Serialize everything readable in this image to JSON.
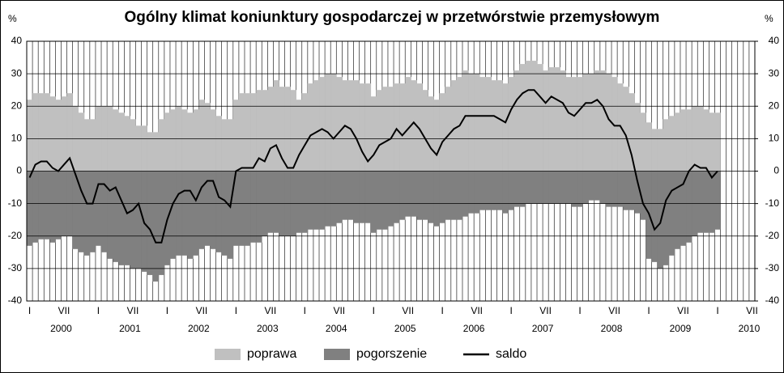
{
  "chart_data": {
    "type": "bar-line",
    "title": "Ogólny klimat koniunktury gospodarczej w przetwórstwie przemysłowym",
    "y_label": "%",
    "y2_label": "%",
    "categories": [
      "I",
      null,
      null,
      null,
      null,
      null,
      "VII",
      null,
      null,
      null,
      null,
      null,
      "I",
      null,
      null,
      null,
      null,
      null,
      "VII",
      null,
      null,
      null,
      null,
      null,
      "I",
      null,
      null,
      null,
      null,
      null,
      "VII",
      null,
      null,
      null,
      null,
      null,
      "I",
      null,
      null,
      null,
      null,
      null,
      "VII",
      null,
      null,
      null,
      null,
      null,
      "I",
      null,
      null,
      null,
      null,
      null,
      "VII",
      null,
      null,
      null,
      null,
      null,
      "I",
      null,
      null,
      null,
      null,
      null,
      "VII",
      null,
      null,
      null,
      null,
      null,
      "I",
      null,
      null,
      null,
      null,
      null,
      "VII",
      null,
      null,
      null,
      null,
      null,
      "I",
      null,
      null,
      null,
      null,
      null,
      "VII",
      null,
      null,
      null,
      null,
      null,
      "I",
      null,
      null,
      null,
      null,
      null,
      "VII",
      null,
      null,
      null,
      null,
      null,
      "I",
      null,
      null,
      null,
      null,
      null,
      "VII",
      null,
      null,
      null,
      null,
      null,
      "I",
      null,
      null,
      null,
      null,
      null,
      "VII"
    ],
    "years": [
      "2000",
      "2001",
      "2002",
      "2003",
      "2004",
      "2005",
      "2006",
      "2007",
      "2008",
      "2009",
      "2010"
    ],
    "series": [
      {
        "name": "poprawa",
        "color": "#c0c0c0",
        "kind": "bar",
        "values": [
          22,
          24,
          24,
          24,
          23,
          22,
          23,
          24,
          20,
          18,
          16,
          16,
          20,
          20,
          20,
          19,
          18,
          17,
          16,
          14,
          14,
          12,
          12,
          16,
          18,
          19,
          20,
          19,
          18,
          19,
          22,
          21,
          19,
          17,
          16,
          16,
          22,
          24,
          24,
          24,
          25,
          25,
          26,
          28,
          26,
          26,
          25,
          22,
          24,
          27,
          28,
          29,
          30,
          30,
          29,
          28,
          28,
          28,
          27,
          27,
          23,
          25,
          26,
          26,
          27,
          27,
          29,
          28,
          27,
          25,
          23,
          22,
          24,
          26,
          28,
          29,
          31,
          30,
          30,
          29,
          29,
          28,
          28,
          27,
          29,
          31,
          33,
          34,
          34,
          33,
          31,
          32,
          32,
          31,
          29,
          29,
          29,
          30,
          30,
          31,
          31,
          30,
          29,
          27,
          26,
          24,
          21,
          18,
          15,
          13,
          13,
          16,
          17,
          18,
          19,
          19,
          20,
          20,
          19,
          18,
          18,
          null,
          null,
          null,
          null,
          null,
          null
        ]
      },
      {
        "name": "pogorszenie",
        "color": "#808080",
        "kind": "bar",
        "values": [
          -23,
          -22,
          -21,
          -21,
          -22,
          -21,
          -20,
          -20,
          -24,
          -25,
          -26,
          -25,
          -23,
          -25,
          -27,
          -28,
          -29,
          -29,
          -30,
          -30,
          -31,
          -32,
          -34,
          -32,
          -29,
          -27,
          -26,
          -26,
          -27,
          -26,
          -24,
          -23,
          -24,
          -25,
          -26,
          -27,
          -23,
          -23,
          -23,
          -22,
          -22,
          -20,
          -19,
          -19,
          -20,
          -20,
          -20,
          -19,
          -19,
          -18,
          -18,
          -18,
          -17,
          -17,
          -16,
          -15,
          -15,
          -16,
          -16,
          -16,
          -19,
          -18,
          -18,
          -17,
          -16,
          -15,
          -14,
          -14,
          -15,
          -15,
          -16,
          -17,
          -16,
          -15,
          -15,
          -15,
          -14,
          -13,
          -13,
          -12,
          -12,
          -12,
          -12,
          -13,
          -12,
          -11,
          -11,
          -10,
          -10,
          -10,
          -10,
          -10,
          -10,
          -10,
          -10,
          -11,
          -11,
          -10,
          -9,
          -9,
          -10,
          -11,
          -11,
          -11,
          -12,
          -12,
          -13,
          -15,
          -27,
          -28,
          -30,
          -29,
          -26,
          -24,
          -23,
          -22,
          -20,
          -19,
          -19,
          -19,
          -18,
          null,
          null,
          null,
          null,
          null,
          null
        ]
      },
      {
        "name": "saldo",
        "color": "#000000",
        "kind": "line",
        "values": [
          -2,
          2,
          3,
          3,
          1,
          0,
          2,
          4,
          -1,
          -6,
          -10,
          -10,
          -4,
          -4,
          -6,
          -5,
          -9,
          -13,
          -12,
          -10,
          -16,
          -18,
          -22,
          -22,
          -15,
          -10,
          -7,
          -6,
          -6,
          -9,
          -5,
          -3,
          -3,
          -8,
          -9,
          -11,
          0,
          1,
          1,
          1,
          4,
          3,
          7,
          8,
          4,
          1,
          1,
          5,
          8,
          11,
          12,
          13,
          12,
          10,
          12,
          14,
          13,
          10,
          6,
          3,
          5,
          8,
          9,
          10,
          13,
          11,
          13,
          15,
          13,
          10,
          7,
          5,
          9,
          11,
          13,
          14,
          17,
          17,
          17,
          17,
          17,
          17,
          16,
          15,
          19,
          22,
          24,
          25,
          25,
          23,
          21,
          23,
          22,
          21,
          18,
          17,
          19,
          21,
          21,
          22,
          20,
          16,
          14,
          14,
          11,
          5,
          -3,
          -10,
          -13,
          -18,
          -16,
          -9,
          -6,
          -5,
          -4,
          0,
          2,
          1,
          1,
          -2,
          0,
          null,
          null,
          null,
          null,
          null,
          null
        ]
      }
    ],
    "ylim": [
      -40,
      40
    ],
    "yticks": [
      -40,
      -30,
      -20,
      -10,
      0,
      10,
      20,
      30,
      40
    ],
    "y2lim": [
      -40,
      40
    ],
    "y2ticks": [
      -40,
      -30,
      -20,
      -10,
      0,
      10,
      20,
      30,
      40
    ],
    "grid": true,
    "legend": "bottom"
  }
}
